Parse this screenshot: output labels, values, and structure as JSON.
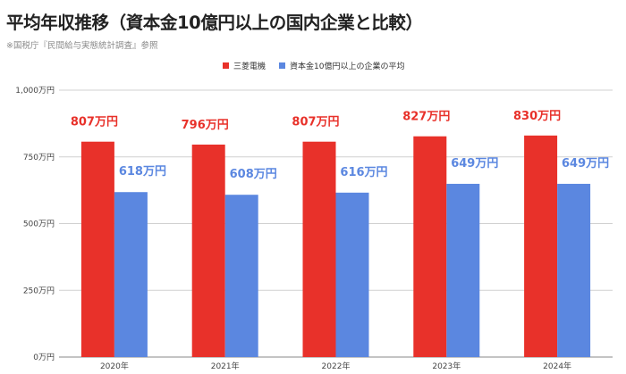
{
  "header": {
    "title": "平均年収推移（資本金10億円以上の国内企業と比較）",
    "source": "※国税庁『民間給与実態統計調査』参照"
  },
  "chart_data": {
    "type": "bar",
    "title": "平均年収推移（資本金10億円以上の国内企業と比較）",
    "categories": [
      "2020年",
      "2021年",
      "2022年",
      "2023年",
      "2024年"
    ],
    "series": [
      {
        "name": "三菱電機",
        "color": "#e8312a",
        "values": [
          807,
          796,
          807,
          827,
          830
        ],
        "labels": [
          "807万円",
          "796万円",
          "807万円",
          "827万円",
          "830万円"
        ]
      },
      {
        "name": "資本金10億円以上の企業の平均",
        "color": "#5b87e0",
        "values": [
          618,
          608,
          616,
          649,
          649
        ],
        "labels": [
          "618万円",
          "608万円",
          "616万円",
          "649万円",
          "649万円"
        ]
      }
    ],
    "ylim": [
      0,
      1000
    ],
    "yticks": [
      0,
      250,
      500,
      750,
      1000
    ],
    "ytick_labels": [
      "0万円",
      "250万円",
      "500万円",
      "750万円",
      "1,000万円"
    ],
    "grid": true,
    "legend": "top-center"
  }
}
